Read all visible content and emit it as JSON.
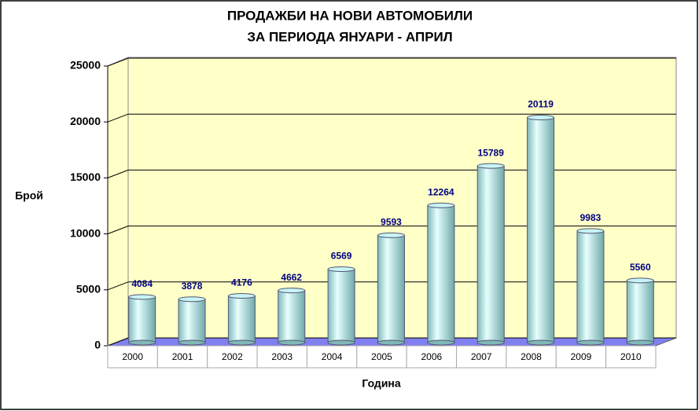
{
  "chart_data": {
    "type": "bar",
    "title": "ПРОДАЖБИ НА НОВИ АВТОМОБИЛИ",
    "subtitle": "ЗА ПЕРИОДА ЯНУАРИ -  АПРИЛ",
    "x_label": "Година",
    "y_label": "Брой",
    "categories": [
      "2000",
      "2001",
      "2002",
      "2003",
      "2004",
      "2005",
      "2006",
      "2007",
      "2008",
      "2009",
      "2010"
    ],
    "values": [
      4084,
      3878,
      4176,
      4662,
      6569,
      9593,
      12264,
      15789,
      20119,
      9983,
      5560
    ],
    "color": "#c8f4f4",
    "ylim": [
      0,
      25000
    ],
    "yticks": [
      0,
      5000,
      10000,
      15000,
      20000,
      25000
    ],
    "grid": true
  }
}
